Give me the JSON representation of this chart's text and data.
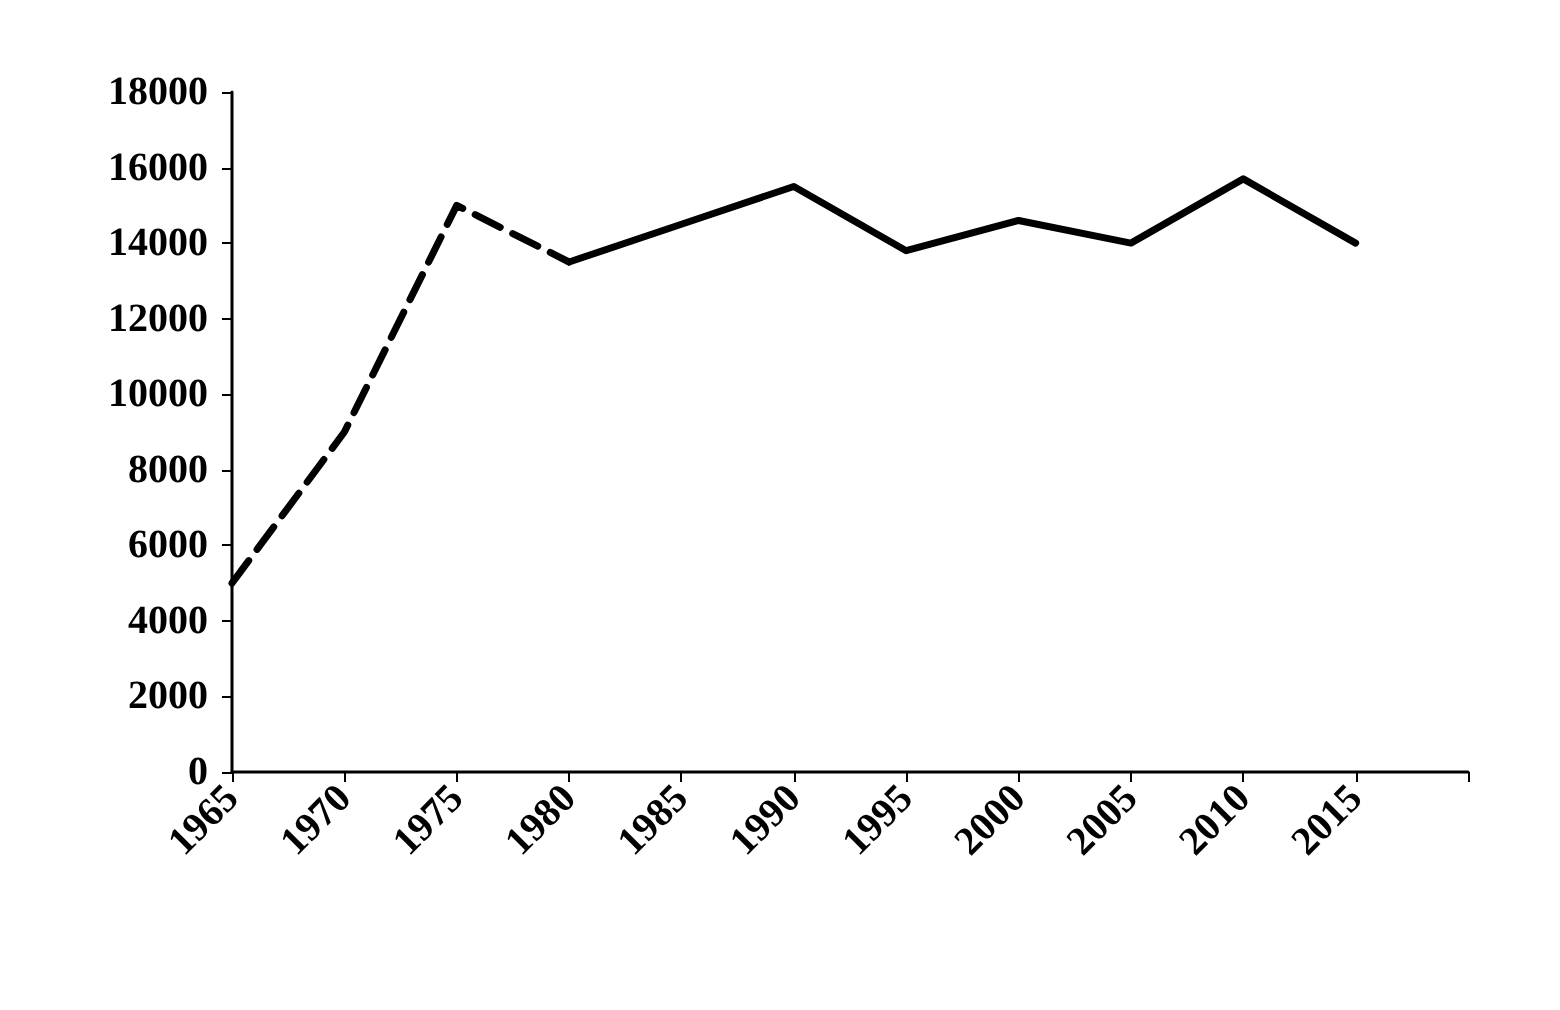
{
  "chart_data": {
    "type": "line",
    "categories": [
      "1965",
      "1970",
      "1975",
      "1980",
      "1985",
      "1990",
      "1995",
      "2000",
      "2005",
      "2010",
      "2015",
      null
    ],
    "series": [
      {
        "color": "#000000",
        "line_style": "dashed",
        "values": [
          5000,
          9000,
          15000,
          13500,
          null,
          null,
          null,
          null,
          null,
          null,
          null,
          null
        ]
      },
      {
        "color": "#000000",
        "line_style": "solid",
        "values": [
          null,
          null,
          null,
          13500,
          14500,
          15500,
          13800,
          14600,
          14000,
          15700,
          14000,
          null
        ]
      }
    ],
    "ylim": [
      0,
      18000
    ],
    "yticks": [
      0,
      2000,
      4000,
      6000,
      8000,
      10000,
      12000,
      14000,
      16000,
      18000
    ],
    "grid": false,
    "marker": "none"
  }
}
